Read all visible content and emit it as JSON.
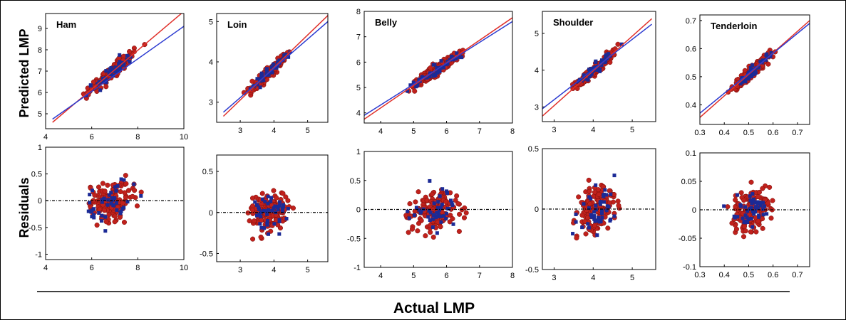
{
  "figure": {
    "ylabel_top": "Predicted LMP",
    "ylabel_bottom": "Residuals",
    "xlabel": "Actual LMP"
  },
  "colors": {
    "red_points": "#c0211c",
    "red_edge": "#7a0e0b",
    "blue_points": "#1b2a96",
    "red_line": "#e0302a",
    "blue_line": "#2b3ad0",
    "zero_line": "#000000"
  },
  "chart_data": [
    {
      "type": "scatter",
      "title": "Ham",
      "role": "predicted",
      "xlim": [
        4,
        10
      ],
      "ylim": [
        4.3,
        9.7
      ],
      "xticks": [
        "4",
        "6",
        "8",
        "10"
      ],
      "yticks": [
        "5",
        "6",
        "7",
        "8",
        "9"
      ],
      "fit_red": [
        [
          4.3,
          4.6
        ],
        [
          10,
          9.8
        ]
      ],
      "fit_blue": [
        [
          4.3,
          4.75
        ],
        [
          10,
          9.1
        ]
      ]
    },
    {
      "type": "scatter",
      "title": "Loin",
      "role": "predicted",
      "xlim": [
        2.3,
        5.6
      ],
      "ylim": [
        2.5,
        5.2
      ],
      "xticks": [
        "3",
        "4",
        "5"
      ],
      "yticks": [
        "3",
        "4",
        "5"
      ],
      "fit_red": [
        [
          2.5,
          2.65
        ],
        [
          5.6,
          5.15
        ]
      ],
      "fit_blue": [
        [
          2.5,
          2.75
        ],
        [
          5.6,
          5.0
        ]
      ]
    },
    {
      "type": "scatter",
      "title": "Belly",
      "role": "predicted",
      "xlim": [
        3.5,
        8
      ],
      "ylim": [
        3.6,
        8
      ],
      "xticks": [
        "4",
        "5",
        "6",
        "7",
        "8"
      ],
      "yticks": [
        "4",
        "5",
        "6",
        "7",
        "8"
      ],
      "fit_red": [
        [
          3.5,
          3.75
        ],
        [
          8,
          7.75
        ]
      ],
      "fit_blue": [
        [
          3.5,
          3.9
        ],
        [
          8,
          7.6
        ]
      ]
    },
    {
      "type": "scatter",
      "title": "Shoulder",
      "role": "predicted",
      "xlim": [
        2.7,
        5.6
      ],
      "ylim": [
        2.6,
        5.6
      ],
      "xticks": [
        "3",
        "4",
        "5"
      ],
      "yticks": [
        "3",
        "4",
        "5"
      ],
      "fit_red": [
        [
          2.7,
          2.75
        ],
        [
          5.5,
          5.4
        ]
      ],
      "fit_blue": [
        [
          2.7,
          2.95
        ],
        [
          5.5,
          5.25
        ]
      ]
    },
    {
      "type": "scatter",
      "title": "Tenderloin",
      "role": "predicted",
      "xlim": [
        0.3,
        0.75
      ],
      "ylim": [
        0.33,
        0.72
      ],
      "xticks": [
        "0.3",
        "0.4",
        "0.5",
        "0.6",
        "0.7"
      ],
      "yticks": [
        "0.4",
        "0.5",
        "0.6",
        "0.7"
      ],
      "fit_red": [
        [
          0.3,
          0.355
        ],
        [
          0.75,
          0.7
        ]
      ],
      "fit_blue": [
        [
          0.3,
          0.37
        ],
        [
          0.75,
          0.69
        ]
      ]
    },
    {
      "type": "scatter",
      "role": "residual",
      "xlim": [
        4,
        10
      ],
      "ylim": [
        -1.1,
        1.0
      ],
      "xticks": [
        "4",
        "6",
        "8",
        "10"
      ],
      "yticks": [
        "-1",
        "-0.5",
        "0",
        "0.5",
        "1"
      ]
    },
    {
      "type": "scatter",
      "role": "residual",
      "xlim": [
        2.3,
        5.6
      ],
      "ylim": [
        -0.6,
        0.7
      ],
      "xticks": [
        "3",
        "4",
        "5"
      ],
      "yticks": [
        "-0.5",
        "0",
        "0.5"
      ]
    },
    {
      "type": "scatter",
      "role": "residual",
      "xlim": [
        3.5,
        8
      ],
      "ylim": [
        -1.0,
        1.0
      ],
      "xticks": [
        "4",
        "5",
        "6",
        "7",
        "8"
      ],
      "yticks": [
        "-1",
        "-0.5",
        "0",
        "0.5",
        "1"
      ]
    },
    {
      "type": "scatter",
      "role": "residual",
      "xlim": [
        2.7,
        5.6
      ],
      "ylim": [
        -0.5,
        0.5
      ],
      "xticks": [
        "3",
        "4",
        "5"
      ],
      "yticks": [
        "-0.5",
        "0",
        "0.5"
      ]
    },
    {
      "type": "scatter",
      "role": "residual",
      "xlim": [
        0.3,
        0.75
      ],
      "ylim": [
        -0.1,
        0.1
      ],
      "xticks": [
        "0.3",
        "0.4",
        "0.5",
        "0.6",
        "0.7"
      ],
      "yticks": [
        "-0.1",
        "-0.05",
        "0",
        "0.05",
        "0.1"
      ]
    }
  ]
}
